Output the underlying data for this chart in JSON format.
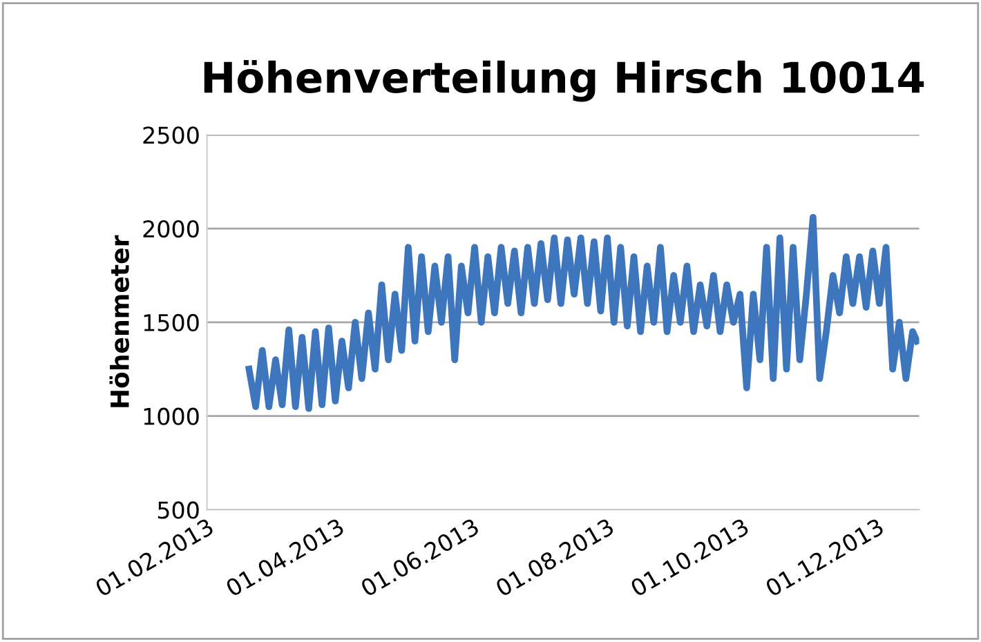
{
  "chart_data": {
    "type": "line",
    "title": "Höhenverteilung Hirsch 10014",
    "ylabel": "Höhenmeter",
    "x": [
      "2013-02-20",
      "2013-02-23",
      "2013-02-26",
      "2013-03-01",
      "2013-03-04",
      "2013-03-07",
      "2013-03-10",
      "2013-03-13",
      "2013-03-16",
      "2013-03-19",
      "2013-03-22",
      "2013-03-25",
      "2013-03-28",
      "2013-03-31",
      "2013-04-03",
      "2013-04-06",
      "2013-04-09",
      "2013-04-12",
      "2013-04-15",
      "2013-04-18",
      "2013-04-21",
      "2013-04-24",
      "2013-04-27",
      "2013-04-30",
      "2013-05-03",
      "2013-05-06",
      "2013-05-09",
      "2013-05-12",
      "2013-05-15",
      "2013-05-18",
      "2013-05-21",
      "2013-05-24",
      "2013-05-27",
      "2013-05-30",
      "2013-06-02",
      "2013-06-05",
      "2013-06-08",
      "2013-06-11",
      "2013-06-14",
      "2013-06-17",
      "2013-06-20",
      "2013-06-23",
      "2013-06-26",
      "2013-06-29",
      "2013-07-02",
      "2013-07-05",
      "2013-07-08",
      "2013-07-11",
      "2013-07-14",
      "2013-07-17",
      "2013-07-20",
      "2013-07-23",
      "2013-07-26",
      "2013-07-29",
      "2013-08-01",
      "2013-08-04",
      "2013-08-07",
      "2013-08-10",
      "2013-08-13",
      "2013-08-16",
      "2013-08-19",
      "2013-08-22",
      "2013-08-25",
      "2013-08-28",
      "2013-08-31",
      "2013-09-03",
      "2013-09-06",
      "2013-09-09",
      "2013-09-12",
      "2013-09-15",
      "2013-09-18",
      "2013-09-21",
      "2013-09-24",
      "2013-09-27",
      "2013-09-30",
      "2013-10-03",
      "2013-10-06",
      "2013-10-09",
      "2013-10-12",
      "2013-10-15",
      "2013-10-18",
      "2013-10-21",
      "2013-10-24",
      "2013-10-27",
      "2013-10-30",
      "2013-11-02",
      "2013-11-05",
      "2013-11-08",
      "2013-11-11",
      "2013-11-14",
      "2013-11-17",
      "2013-11-20",
      "2013-11-23",
      "2013-11-26",
      "2013-11-29",
      "2013-12-02",
      "2013-12-05",
      "2013-12-08",
      "2013-12-11",
      "2013-12-14",
      "2013-12-17",
      "2013-12-19"
    ],
    "series": [
      {
        "color": "#3d76bd",
        "values": [
          1250,
          1050,
          1350,
          1050,
          1300,
          1060,
          1460,
          1050,
          1420,
          1040,
          1450,
          1060,
          1470,
          1080,
          1400,
          1150,
          1500,
          1200,
          1550,
          1250,
          1700,
          1300,
          1650,
          1350,
          1900,
          1400,
          1850,
          1450,
          1800,
          1500,
          1850,
          1300,
          1800,
          1550,
          1900,
          1500,
          1850,
          1550,
          1900,
          1600,
          1880,
          1550,
          1900,
          1600,
          1920,
          1620,
          1950,
          1600,
          1940,
          1650,
          1950,
          1600,
          1930,
          1560,
          1950,
          1500,
          1900,
          1480,
          1850,
          1450,
          1800,
          1500,
          1900,
          1450,
          1750,
          1500,
          1800,
          1450,
          1700,
          1480,
          1750,
          1450,
          1700,
          1500,
          1650,
          1150,
          1650,
          1300,
          1900,
          1200,
          1950,
          1250,
          1900,
          1300,
          1650,
          2060,
          1200,
          1450,
          1750,
          1550,
          1850,
          1600,
          1850,
          1580,
          1880,
          1600,
          1900,
          1250,
          1500,
          1200,
          1450,
          1400
        ]
      }
    ],
    "xlim": [
      "2013-02-01",
      "2013-12-20"
    ],
    "xticks": [
      {
        "value": "2013-02-01",
        "label": "01.02.2013"
      },
      {
        "value": "2013-04-01",
        "label": "01.04.2013"
      },
      {
        "value": "2013-06-01",
        "label": "01.06.2013"
      },
      {
        "value": "2013-08-01",
        "label": "01.08.2013"
      },
      {
        "value": "2013-10-01",
        "label": "01.10.2013"
      },
      {
        "value": "2013-12-01",
        "label": "01.12.2013"
      }
    ],
    "ylim": [
      500,
      2500
    ],
    "yticks": [
      500,
      1000,
      1500,
      2000,
      2500
    ],
    "grid": "y",
    "line_style": "solid"
  }
}
